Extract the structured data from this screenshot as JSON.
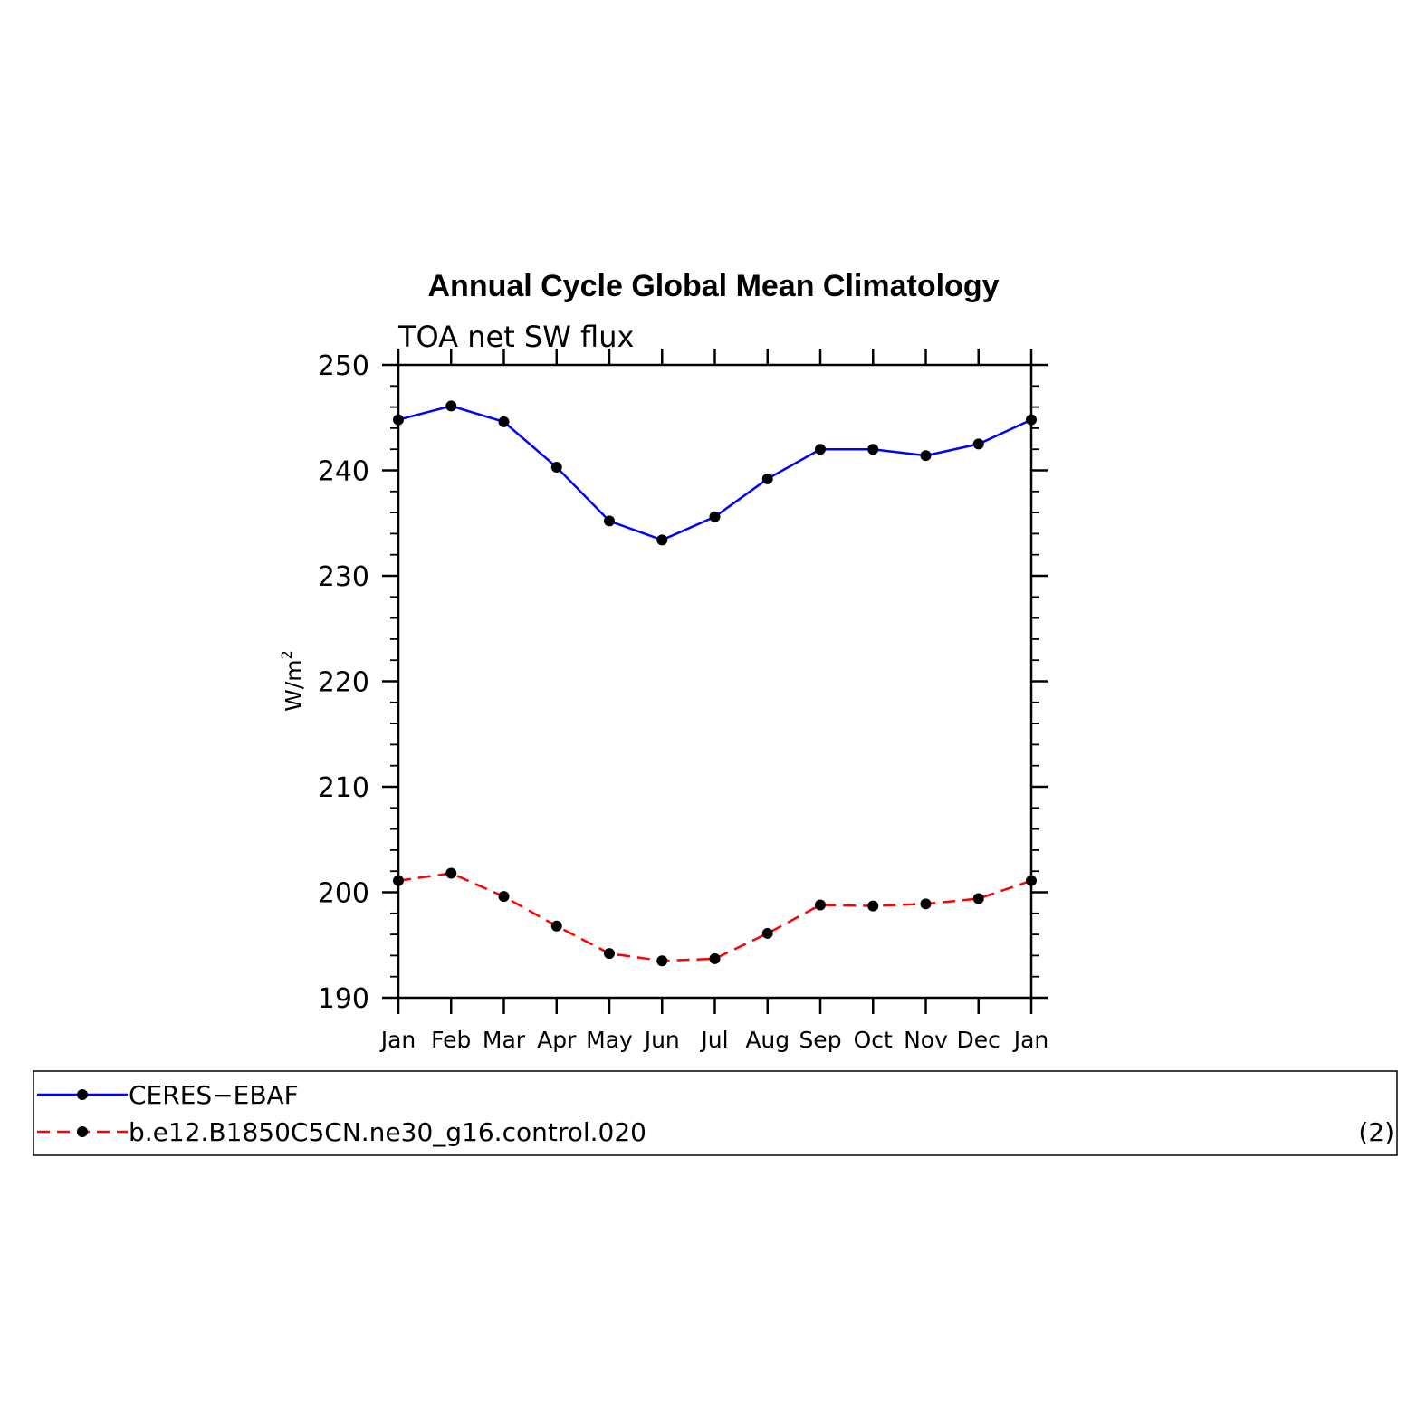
{
  "chart_data": {
    "type": "line",
    "title": "Annual Cycle Global Mean Climatology",
    "subtitle": "TOA net SW flux",
    "xlabel": "",
    "ylabel": "W/m",
    "ylabel_superscript": "2",
    "categories": [
      "Jan",
      "Feb",
      "Mar",
      "Apr",
      "May",
      "Jun",
      "Jul",
      "Aug",
      "Sep",
      "Oct",
      "Nov",
      "Dec",
      "Jan"
    ],
    "ylim": [
      190,
      250
    ],
    "yticks": [
      190,
      200,
      210,
      220,
      230,
      240,
      250
    ],
    "grid": false,
    "legend_position": "bottom",
    "series": [
      {
        "name": "CERES−EBAF",
        "color": "#0000ff",
        "dash": "solid",
        "marker": "circle",
        "values": [
          244.8,
          246.1,
          244.6,
          240.3,
          235.2,
          233.4,
          235.6,
          239.2,
          242.0,
          242.0,
          241.4,
          242.5,
          244.8
        ]
      },
      {
        "name": "b.e12.B1850C5CN.ne30_g16.control.020",
        "color": "#ff0000",
        "dash": "dashed",
        "marker": "circle",
        "values": [
          201.1,
          201.8,
          199.6,
          196.8,
          194.2,
          193.5,
          193.7,
          196.1,
          198.8,
          198.7,
          198.9,
          199.4,
          201.1
        ]
      }
    ]
  },
  "legend": {
    "note": "(2)"
  }
}
